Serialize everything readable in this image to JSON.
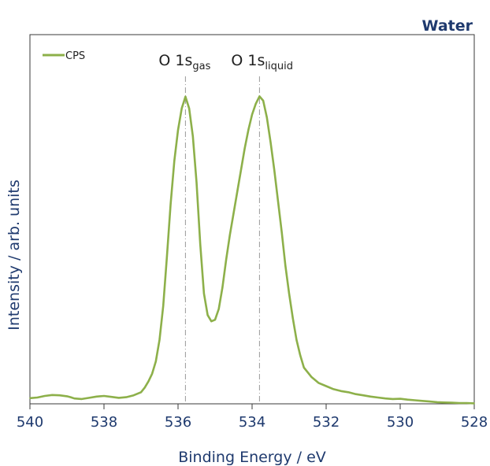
{
  "chart_data": {
    "type": "line",
    "title": "Water",
    "xlabel": "Binding Energy / eV",
    "ylabel": "Intensity / arb. units",
    "xlim": [
      540,
      528
    ],
    "x_reversed": true,
    "xticks": [
      "540",
      "538",
      "536",
      "534",
      "532",
      "530",
      "528"
    ],
    "xtick_values": [
      540,
      538,
      536,
      534,
      532,
      530,
      528
    ],
    "ylim": [
      0,
      1
    ],
    "yticks_shown": false,
    "grid": false,
    "legend": {
      "position": "top-left",
      "entries": [
        "CPS"
      ]
    },
    "annotations": [
      {
        "main": "O 1s",
        "sub": "gas",
        "x": 535.8
      },
      {
        "main": "O 1s",
        "sub": "liquid",
        "x": 533.8
      }
    ],
    "series": [
      {
        "name": "CPS",
        "color": "#8db04a",
        "points": [
          [
            540.0,
            0.021
          ],
          [
            539.8,
            0.023
          ],
          [
            539.6,
            0.028
          ],
          [
            539.4,
            0.031
          ],
          [
            539.2,
            0.03
          ],
          [
            539.0,
            0.027
          ],
          [
            538.9,
            0.024
          ],
          [
            538.8,
            0.02
          ],
          [
            538.6,
            0.018
          ],
          [
            538.4,
            0.022
          ],
          [
            538.2,
            0.026
          ],
          [
            538.0,
            0.028
          ],
          [
            537.8,
            0.025
          ],
          [
            537.6,
            0.022
          ],
          [
            537.4,
            0.024
          ],
          [
            537.2,
            0.03
          ],
          [
            537.0,
            0.04
          ],
          [
            536.9,
            0.055
          ],
          [
            536.8,
            0.075
          ],
          [
            536.7,
            0.1
          ],
          [
            536.6,
            0.14
          ],
          [
            536.5,
            0.21
          ],
          [
            536.4,
            0.32
          ],
          [
            536.3,
            0.48
          ],
          [
            536.2,
            0.65
          ],
          [
            536.1,
            0.79
          ],
          [
            536.0,
            0.89
          ],
          [
            535.9,
            0.96
          ],
          [
            535.8,
            0.998
          ],
          [
            535.7,
            0.96
          ],
          [
            535.6,
            0.87
          ],
          [
            535.5,
            0.72
          ],
          [
            535.4,
            0.52
          ],
          [
            535.3,
            0.36
          ],
          [
            535.2,
            0.29
          ],
          [
            535.1,
            0.27
          ],
          [
            535.0,
            0.275
          ],
          [
            534.9,
            0.31
          ],
          [
            534.8,
            0.38
          ],
          [
            534.7,
            0.47
          ],
          [
            534.6,
            0.55
          ],
          [
            534.5,
            0.62
          ],
          [
            534.4,
            0.69
          ],
          [
            534.3,
            0.76
          ],
          [
            534.2,
            0.83
          ],
          [
            534.1,
            0.89
          ],
          [
            534.0,
            0.94
          ],
          [
            533.9,
            0.975
          ],
          [
            533.8,
            0.999
          ],
          [
            533.7,
            0.985
          ],
          [
            533.6,
            0.93
          ],
          [
            533.5,
            0.85
          ],
          [
            533.4,
            0.76
          ],
          [
            533.3,
            0.66
          ],
          [
            533.2,
            0.56
          ],
          [
            533.1,
            0.45
          ],
          [
            533.0,
            0.36
          ],
          [
            532.9,
            0.28
          ],
          [
            532.8,
            0.21
          ],
          [
            532.7,
            0.16
          ],
          [
            532.6,
            0.12
          ],
          [
            532.4,
            0.09
          ],
          [
            532.2,
            0.07
          ],
          [
            532.0,
            0.06
          ],
          [
            531.8,
            0.05
          ],
          [
            531.6,
            0.044
          ],
          [
            531.4,
            0.04
          ],
          [
            531.2,
            0.034
          ],
          [
            531.0,
            0.03
          ],
          [
            530.8,
            0.026
          ],
          [
            530.6,
            0.023
          ],
          [
            530.4,
            0.02
          ],
          [
            530.2,
            0.018
          ],
          [
            530.0,
            0.019
          ],
          [
            529.8,
            0.016
          ],
          [
            529.6,
            0.014
          ],
          [
            529.4,
            0.012
          ],
          [
            529.2,
            0.01
          ],
          [
            529.0,
            0.008
          ],
          [
            528.8,
            0.007
          ],
          [
            528.6,
            0.006
          ],
          [
            528.4,
            0.005
          ],
          [
            528.2,
            0.005
          ],
          [
            528.0,
            0.004
          ]
        ]
      }
    ]
  }
}
